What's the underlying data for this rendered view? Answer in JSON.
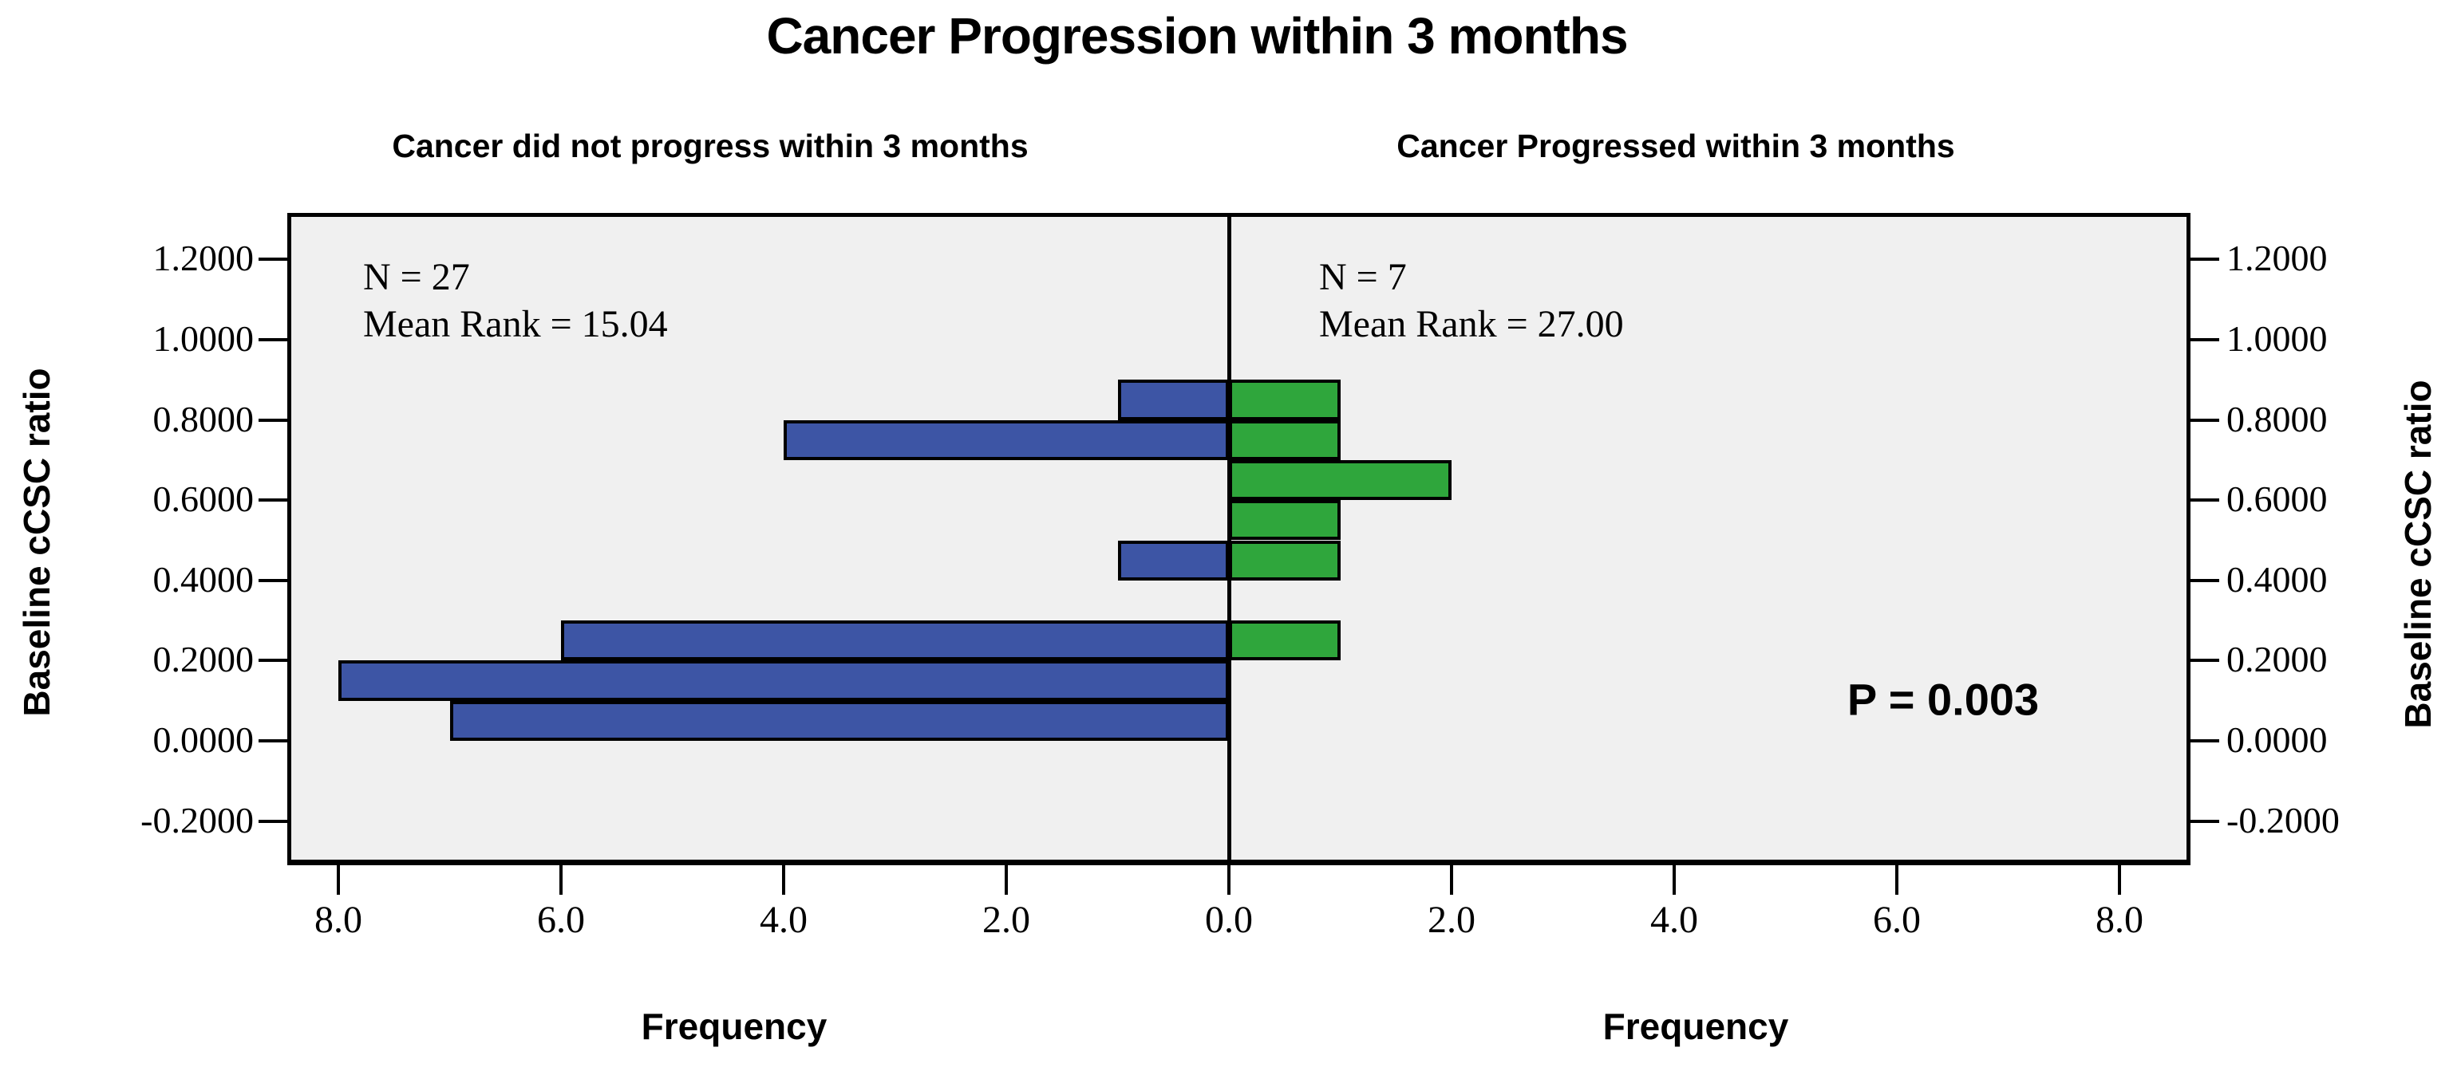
{
  "title": "Cancer Progression within 3 months",
  "panels": {
    "left": {
      "header": "Cancer did not progress within 3 months",
      "stats": [
        "N = 27",
        "Mean Rank = 15.04"
      ]
    },
    "right": {
      "header": "Cancer Progressed within 3 months",
      "stats": [
        "N = 7",
        "Mean Rank = 27.00"
      ],
      "p_label": "P = 0.003"
    }
  },
  "axes": {
    "y_title_left": "Baseline cCSC ratio",
    "y_title_right": "Baseline cCSC ratio",
    "x_title_left": "Frequency",
    "x_title_right": "Frequency"
  },
  "colors": {
    "left_bar": "#3D55A5",
    "right_bar": "#2FA63C",
    "plot_background": "#F0F0F0",
    "axis_line": "#000000"
  },
  "chart_data": {
    "type": "bar",
    "subtype": "back-to-back horizontal histogram (population pyramid)",
    "title": "Cancer Progression within 3 months",
    "p_value_annotation": "P = 0.003",
    "y_axis": {
      "label": "Baseline cCSC ratio",
      "tick_labels": [
        "1.2000",
        "1.0000",
        "0.8000",
        "0.6000",
        "0.4000",
        "0.2000",
        "0.0000",
        "-0.2000"
      ],
      "tick_values": [
        1.2,
        1.0,
        0.8,
        0.6,
        0.4,
        0.2,
        0.0,
        -0.2
      ],
      "range": [
        -0.31,
        1.315
      ],
      "bin_width": 0.1,
      "grid": false
    },
    "x_axis": {
      "label": "Frequency",
      "left_tick_labels": [
        "8.0",
        "6.0",
        "4.0",
        "2.0"
      ],
      "left_tick_values": [
        8,
        6,
        4,
        2
      ],
      "center_tick_label": "0.0",
      "right_tick_labels": [
        "2.0",
        "4.0",
        "6.0",
        "8.0"
      ],
      "right_tick_values": [
        2,
        4,
        6,
        8
      ],
      "max_per_side": 8.45
    },
    "series": [
      {
        "name": "Cancer did not progress within 3 months",
        "side": "left",
        "color": "#3D55A5",
        "n": 27,
        "mean_rank": 15.04,
        "bins": [
          {
            "range": [
              0.8,
              0.9
            ],
            "freq": 1
          },
          {
            "range": [
              0.7,
              0.8
            ],
            "freq": 4
          },
          {
            "range": [
              0.4,
              0.5
            ],
            "freq": 1
          },
          {
            "range": [
              0.2,
              0.3
            ],
            "freq": 6
          },
          {
            "range": [
              0.1,
              0.2
            ],
            "freq": 8
          },
          {
            "range": [
              0.0,
              0.1
            ],
            "freq": 7
          }
        ]
      },
      {
        "name": "Cancer Progressed within 3 months",
        "side": "right",
        "color": "#2FA63C",
        "n": 7,
        "mean_rank": 27.0,
        "bins": [
          {
            "range": [
              0.8,
              0.9
            ],
            "freq": 1
          },
          {
            "range": [
              0.7,
              0.8
            ],
            "freq": 1
          },
          {
            "range": [
              0.6,
              0.7
            ],
            "freq": 2
          },
          {
            "range": [
              0.5,
              0.6
            ],
            "freq": 1
          },
          {
            "range": [
              0.4,
              0.5
            ],
            "freq": 1
          },
          {
            "range": [
              0.2,
              0.3
            ],
            "freq": 1
          }
        ]
      }
    ],
    "legend_position": "none"
  }
}
